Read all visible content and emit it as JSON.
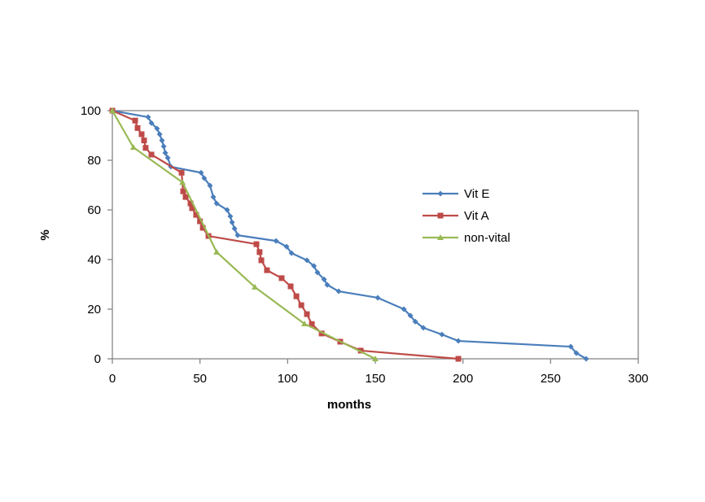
{
  "chart_data": {
    "type": "line",
    "title": "",
    "xlabel": "months",
    "ylabel": "%",
    "xlim": [
      0,
      300
    ],
    "ylim": [
      0,
      100
    ],
    "xticks": [
      0,
      50,
      100,
      150,
      200,
      250,
      300
    ],
    "yticks": [
      0,
      20,
      40,
      60,
      80,
      100
    ],
    "grid": false,
    "legend_position": "right-center",
    "series": [
      {
        "name": "Vit E",
        "color": "#4a7ebb",
        "marker": "diamond",
        "x": [
          0,
          20.4,
          22.3,
          25.5,
          27,
          28.3,
          29.3,
          30.2,
          31.6,
          33.4,
          50.6,
          52.4,
          55.7,
          57.6,
          59.5,
          65.5,
          67.3,
          68.3,
          69.7,
          71.5,
          93.4,
          99.4,
          102.2,
          111,
          115,
          117,
          120.8,
          122.6,
          129.1,
          151.4,
          166.3,
          170,
          172.8,
          177.4,
          188,
          197.4,
          261.5,
          264.7,
          270.3
        ],
        "y": [
          100,
          97.4,
          95,
          92.8,
          90.5,
          88,
          85.6,
          83,
          81,
          77.4,
          75,
          72.8,
          69.8,
          65.2,
          62.6,
          60,
          57.4,
          55,
          52.5,
          49.8,
          47.5,
          45.2,
          42.6,
          39.7,
          37.4,
          34.8,
          32,
          29.8,
          27.2,
          24.6,
          20,
          17.4,
          15,
          12.5,
          9.8,
          7.2,
          4.9,
          2.3,
          0
        ]
      },
      {
        "name": "Vit A",
        "color": "#be4b48",
        "marker": "square",
        "x": [
          0,
          13,
          14.4,
          16.7,
          18.1,
          19,
          22.3,
          39.5,
          40.4,
          41.8,
          44.6,
          45.5,
          47.8,
          50,
          51.6,
          54.8,
          82.2,
          84,
          85,
          88.2,
          96.6,
          101.7,
          105,
          107.8,
          111,
          113.8,
          119.4,
          130,
          141.7,
          197.4
        ],
        "y": [
          100,
          96,
          93,
          90.5,
          88,
          85,
          82.3,
          75,
          67.5,
          65.2,
          62.6,
          60.7,
          58,
          55.4,
          52.8,
          49.5,
          46.2,
          43,
          39.7,
          35.7,
          32.5,
          29.2,
          25.2,
          21.6,
          18,
          14,
          10.2,
          6.9,
          3.3,
          0
        ]
      },
      {
        "name": "non-vital",
        "color": "#98b954",
        "marker": "triangle",
        "x": [
          0,
          12,
          40,
          59.5,
          81.3,
          109.6,
          150
        ],
        "y": [
          100,
          85.2,
          71.1,
          43,
          28.9,
          14.1,
          0
        ]
      }
    ]
  }
}
